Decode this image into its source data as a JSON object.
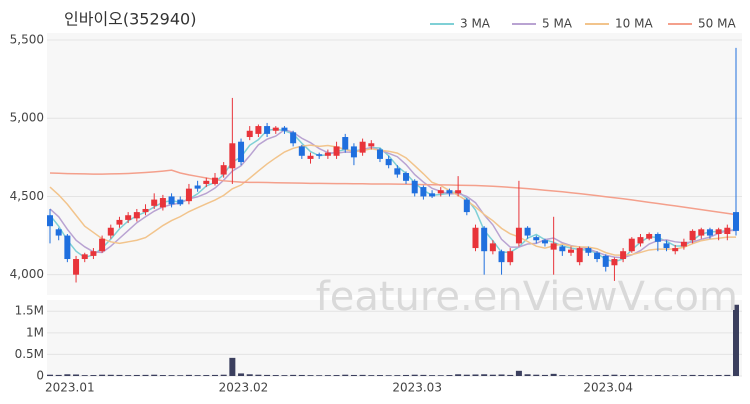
{
  "chart_data": {
    "type": "candlestick",
    "title": "인바이오(352940)",
    "watermark": "feature.enViewV.com",
    "up_color": "#e8343a",
    "down_color": "#1f6fde",
    "volume_color": "#3b3f5e",
    "categories": [
      "2023.01",
      null,
      null,
      null,
      null,
      null,
      null,
      null,
      null,
      null,
      null,
      null,
      null,
      null,
      null,
      null,
      null,
      null,
      null,
      null,
      "2023.02",
      null,
      null,
      null,
      null,
      null,
      null,
      null,
      null,
      null,
      null,
      null,
      null,
      null,
      null,
      null,
      null,
      null,
      null,
      null,
      "2023.03",
      null,
      null,
      null,
      null,
      null,
      null,
      null,
      null,
      null,
      null,
      null,
      null,
      null,
      null,
      null,
      null,
      null,
      null,
      null,
      null,
      null,
      "2023.04",
      null,
      null,
      null,
      null,
      null,
      null,
      null,
      null,
      null,
      null,
      null,
      null,
      null,
      null,
      null,
      null,
      null
    ],
    "open": [
      4380,
      4290,
      4250,
      4000,
      4100,
      4120,
      4150,
      4250,
      4320,
      4350,
      4360,
      4400,
      4440,
      4430,
      4500,
      4480,
      4470,
      4570,
      4580,
      4580,
      4640,
      4680,
      4850,
      4880,
      4900,
      4950,
      4920,
      4940,
      4910,
      4820,
      4740,
      4770,
      4760,
      4760,
      4880,
      4820,
      4780,
      4820,
      4800,
      4740,
      4680,
      4650,
      4600,
      4560,
      4520,
      4520,
      4540,
      4520,
      4480,
      4170,
      4300,
      4150,
      4150,
      4080,
      4200,
      4300,
      4240,
      4220,
      4160,
      4180,
      4140,
      4080,
      4170,
      4140,
      4120,
      4060,
      4100,
      4150,
      4200,
      4230,
      4260,
      4200,
      4150,
      4180,
      4220,
      4250,
      4290,
      4260,
      4260,
      4400
    ],
    "high": [
      4420,
      4300,
      4260,
      4120,
      4140,
      4170,
      4250,
      4320,
      4370,
      4400,
      4420,
      4450,
      4520,
      4510,
      4520,
      4500,
      4580,
      4600,
      4620,
      4650,
      4720,
      5130,
      4870,
      4950,
      4960,
      4970,
      4950,
      4950,
      4920,
      4830,
      4780,
      4780,
      4800,
      4850,
      4900,
      4840,
      4870,
      4860,
      4810,
      4760,
      4700,
      4660,
      4610,
      4570,
      4540,
      4560,
      4550,
      4630,
      4490,
      4320,
      4310,
      4220,
      4160,
      4170,
      4600,
      4310,
      4250,
      4230,
      4370,
      4190,
      4180,
      4180,
      4180,
      4150,
      4130,
      4110,
      4170,
      4240,
      4260,
      4270,
      4270,
      4220,
      4190,
      4230,
      4290,
      4300,
      4300,
      4300,
      4320,
      5450
    ],
    "low": [
      4200,
      4220,
      4080,
      3950,
      4080,
      4100,
      4140,
      4230,
      4300,
      4330,
      4340,
      4380,
      4420,
      4410,
      4430,
      4440,
      4450,
      4530,
      4560,
      4570,
      4620,
      4580,
      4700,
      4860,
      4880,
      4880,
      4900,
      4900,
      4820,
      4740,
      4710,
      4740,
      4740,
      4740,
      4780,
      4700,
      4760,
      4800,
      4720,
      4680,
      4620,
      4580,
      4500,
      4480,
      4490,
      4500,
      4500,
      4500,
      4380,
      4150,
      4000,
      4130,
      4000,
      4060,
      4180,
      4230,
      4200,
      4180,
      4000,
      4120,
      4120,
      4060,
      4120,
      4080,
      4020,
      3960,
      4080,
      4140,
      4180,
      4220,
      4150,
      4150,
      4130,
      4160,
      4200,
      4230,
      4230,
      4220,
      4220,
      4250
    ],
    "close": [
      4310,
      4250,
      4100,
      4100,
      4130,
      4150,
      4230,
      4300,
      4350,
      4380,
      4400,
      4420,
      4480,
      4490,
      4450,
      4450,
      4550,
      4550,
      4600,
      4620,
      4700,
      4840,
      4720,
      4920,
      4950,
      4900,
      4940,
      4920,
      4840,
      4760,
      4760,
      4760,
      4780,
      4820,
      4800,
      4750,
      4850,
      4840,
      4740,
      4700,
      4640,
      4600,
      4520,
      4500,
      4500,
      4540,
      4520,
      4540,
      4400,
      4300,
      4150,
      4200,
      4080,
      4150,
      4300,
      4250,
      4220,
      4200,
      4200,
      4150,
      4160,
      4170,
      4140,
      4100,
      4050,
      4100,
      4150,
      4230,
      4240,
      4260,
      4210,
      4170,
      4170,
      4210,
      4280,
      4290,
      4250,
      4290,
      4300,
      4280
    ],
    "series": [
      {
        "name": "3 MA",
        "color": "#7fd0d6",
        "values": [
          4380,
          4310,
          4220,
          4150,
          4110,
          4127,
          4170,
          4227,
          4293,
          4343,
          4377,
          4400,
          4433,
          4463,
          4473,
          4463,
          4483,
          4517,
          4567,
          4590,
          4640,
          4720,
          4753,
          4827,
          4863,
          4923,
          4930,
          4920,
          4900,
          4840,
          4787,
          4760,
          4767,
          4787,
          4800,
          4790,
          4800,
          4813,
          4810,
          4760,
          4693,
          4647,
          4587,
          4540,
          4507,
          4513,
          4520,
          4533,
          4487,
          4413,
          4283,
          4217,
          4143,
          4143,
          4177,
          4233,
          4257,
          4223,
          4207,
          4183,
          4170,
          4160,
          4157,
          4137,
          4097,
          4083,
          4100,
          4160,
          4207,
          4243,
          4237,
          4213,
          4183,
          4183,
          4220,
          4260,
          4273,
          4277,
          4280,
          4290
        ]
      },
      {
        "name": "5 MA",
        "color": "#b9a3d2",
        "values": [
          4420,
          4370,
          4290,
          4220,
          4178,
          4146,
          4142,
          4182,
          4232,
          4282,
          4332,
          4370,
          4406,
          4434,
          4448,
          4458,
          4484,
          4498,
          4520,
          4554,
          4604,
          4662,
          4696,
          4760,
          4830,
          4866,
          4886,
          4926,
          4910,
          4872,
          4844,
          4806,
          4780,
          4776,
          4784,
          4782,
          4800,
          4812,
          4796,
          4776,
          4754,
          4704,
          4640,
          4592,
          4552,
          4532,
          4516,
          4520,
          4500,
          4460,
          4382,
          4318,
          4226,
          4176,
          4176,
          4196,
          4200,
          4224,
          4234,
          4204,
          4186,
          4176,
          4164,
          4144,
          4124,
          4112,
          4108,
          4126,
          4154,
          4196,
          4218,
          4222,
          4210,
          4204,
          4208,
          4226,
          4240,
          4264,
          4282,
          4282
        ]
      },
      {
        "name": "10 MA",
        "color": "#f2c48c",
        "values": [
          4560,
          4510,
          4450,
          4380,
          4310,
          4270,
          4230,
          4210,
          4200,
          4210,
          4220,
          4237,
          4275,
          4314,
          4346,
          4371,
          4403,
          4428,
          4453,
          4477,
          4507,
          4549,
          4573,
          4617,
          4663,
          4708,
          4747,
          4784,
          4808,
          4822,
          4828,
          4820,
          4826,
          4816,
          4801,
          4786,
          4793,
          4805,
          4795,
          4789,
          4777,
          4747,
          4697,
          4645,
          4590,
          4570,
          4537,
          4507,
          4473,
          4433,
          4385,
          4345,
          4296,
          4261,
          4241,
          4212,
          4182,
          4170,
          4184,
          4196,
          4182,
          4178,
          4176,
          4166,
          4141,
          4126,
          4124,
          4128,
          4142,
          4158,
          4163,
          4163,
          4164,
          4175,
          4198,
          4217,
          4227,
          4233,
          4240,
          4240
        ]
      },
      {
        "name": "50 MA",
        "color": "#f4a08c",
        "values": [
          4650,
          4648,
          4646,
          4645,
          4644,
          4643,
          4643,
          4644,
          4645,
          4647,
          4650,
          4653,
          4657,
          4662,
          4668,
          4650,
          4638,
          4628,
          4618,
          4608,
          4600,
          4596,
          4592,
          4590,
          4590,
          4589,
          4588,
          4587,
          4586,
          4585,
          4584,
          4584,
          4583,
          4582,
          4582,
          4581,
          4581,
          4580,
          4580,
          4580,
          4579,
          4578,
          4577,
          4576,
          4575,
          4574,
          4573,
          4572,
          4571,
          4570,
          4568,
          4565,
          4562,
          4558,
          4554,
          4550,
          4545,
          4540,
          4535,
          4530,
          4524,
          4518,
          4512,
          4505,
          4498,
          4492,
          4485,
          4478,
          4470,
          4462,
          4455,
          4447,
          4440,
          4432,
          4424,
          4416,
          4408,
          4400,
          4392,
          4384
        ]
      }
    ],
    "volume": [
      30000,
      25000,
      40000,
      35000,
      20000,
      22000,
      30000,
      28000,
      25000,
      20000,
      24000,
      26000,
      30000,
      22000,
      20000,
      18000,
      26000,
      20000,
      22000,
      25000,
      30000,
      420000,
      60000,
      40000,
      30000,
      25000,
      22000,
      20000,
      26000,
      24000,
      20000,
      18000,
      20000,
      22000,
      30000,
      24000,
      26000,
      20000,
      22000,
      18000,
      20000,
      24000,
      30000,
      26000,
      20000,
      18000,
      22000,
      40000,
      30000,
      35000,
      40000,
      30000,
      35000,
      25000,
      120000,
      40000,
      30000,
      25000,
      50000,
      20000,
      18000,
      20000,
      22000,
      20000,
      25000,
      30000,
      22000,
      24000,
      20000,
      18000,
      22000,
      20000,
      18000,
      20000,
      25000,
      22000,
      20000,
      24000,
      26000,
      1650000
    ],
    "ylim": [
      3870,
      5545
    ],
    "yticks": [
      {
        "value": 4000,
        "label": "4,000"
      },
      {
        "value": 4500,
        "label": "4,500"
      },
      {
        "value": 5000,
        "label": "5,000"
      },
      {
        "value": 5500,
        "label": "5,500"
      }
    ],
    "volume_ylim": [
      0,
      1760000
    ],
    "volume_yticks": [
      0,
      {
        "value": 500000,
        "label": "0.5M"
      },
      {
        "value": 1000000,
        "label": "1M"
      },
      {
        "value": 1500000,
        "label": "1.5M"
      }
    ],
    "grid": true
  }
}
